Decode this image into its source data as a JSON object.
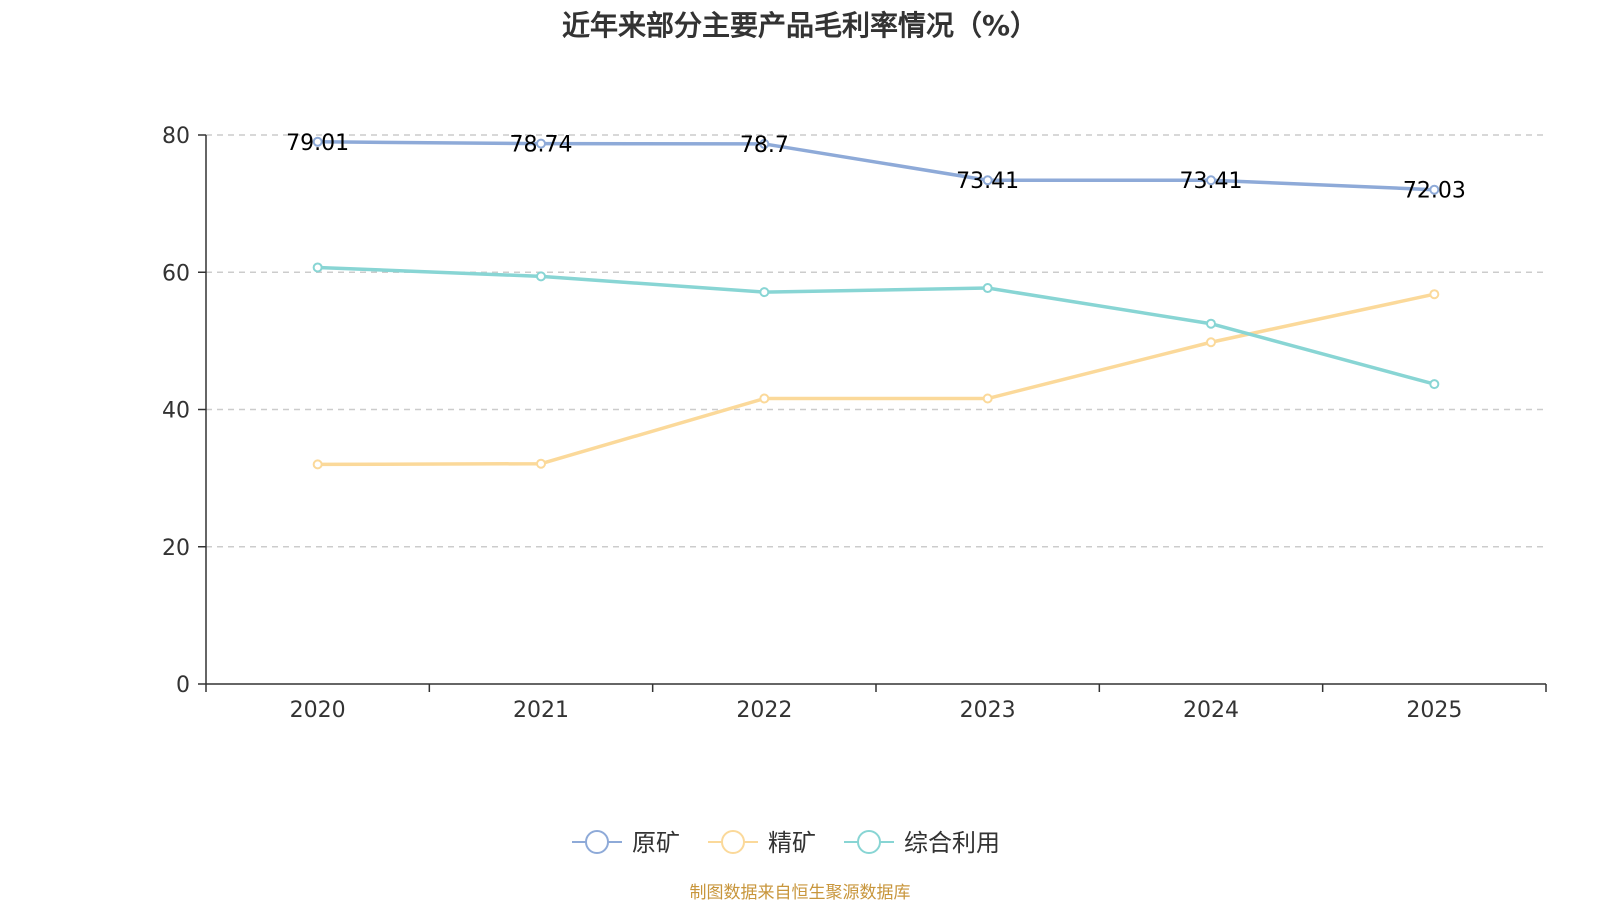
{
  "chart_data": {
    "type": "line",
    "title": "近年来部分主要产品毛利率情况（%）",
    "categories": [
      "2020",
      "2021",
      "2022",
      "2023",
      "2024",
      "2025"
    ],
    "ylim": [
      0,
      80
    ],
    "yticks": [
      0,
      20,
      40,
      60,
      80
    ],
    "grid": true,
    "legend_position": "bottom",
    "series": [
      {
        "name": "原矿",
        "color": "#8eaad8",
        "values": [
          79.01,
          78.74,
          78.7,
          73.41,
          73.41,
          72.03
        ],
        "show_labels": true,
        "labels": [
          "79.01",
          "78.74",
          "78.7",
          "73.41",
          "73.41",
          "72.03"
        ]
      },
      {
        "name": "精矿",
        "color": "#fbd99a",
        "values": [
          32.0,
          32.1,
          41.6,
          41.6,
          49.8,
          56.8
        ],
        "show_labels": false
      },
      {
        "name": "综合利用",
        "color": "#88d5d4",
        "values": [
          60.7,
          59.4,
          57.1,
          57.7,
          52.5,
          43.7
        ],
        "show_labels": false
      }
    ]
  },
  "source_note": "制图数据来自恒生聚源数据库"
}
